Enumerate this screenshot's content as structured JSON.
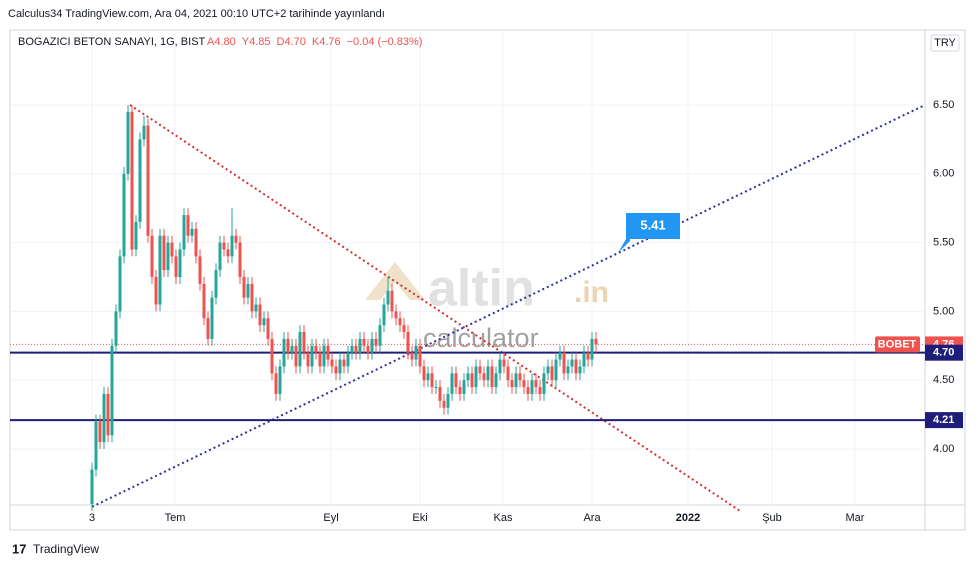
{
  "header": {
    "published": "Calculus34 TradingView.com, Ara 04, 2021 00:10 UTC+2 tarihinde yayınlandı",
    "brand": "TradingView"
  },
  "chart_data": {
    "type": "candlestick",
    "title": "BOGAZICI BETON SANAYI, 1G, BIST",
    "ohlc_legend": [
      "A4.80",
      "Y4.85",
      "D4.70",
      "K4.76",
      "−0.04 (−0.83%)"
    ],
    "currency": "TRY",
    "up_color": "#26a69a",
    "down_color": "#ef5350",
    "xlim": [
      -20.5,
      208.25
    ],
    "xticks": [
      {
        "value": 0,
        "label": "3"
      },
      {
        "value": 20.75,
        "label": "Tem"
      },
      {
        "value": 59.75,
        "label": "Eyl"
      },
      {
        "value": 82,
        "label": "Eki"
      },
      {
        "value": 102.75,
        "label": "Kas"
      },
      {
        "value": 125,
        "label": "Ara"
      },
      {
        "value": 149,
        "label": "2022"
      },
      {
        "value": 170,
        "label": "Şub"
      },
      {
        "value": 190.75,
        "label": "Mar"
      }
    ],
    "ylim": [
      3.593,
      7.045
    ],
    "yticks": [
      {
        "value": 4,
        "label": "4.00"
      },
      {
        "value": 4.5,
        "label": "4.50"
      },
      {
        "value": 5,
        "label": "5.00"
      },
      {
        "value": 5.5,
        "label": "5.50"
      },
      {
        "value": 6,
        "label": "6.00"
      },
      {
        "value": 6.5,
        "label": "6.50"
      }
    ],
    "grid": true,
    "open": [
      3.6,
      3.85,
      4.2,
      4.05,
      4.4,
      4.1,
      4.75,
      5.0,
      5.4,
      6.0,
      6.45,
      5.45,
      5.65,
      6.25,
      6.35,
      5.55,
      5.25,
      5.05,
      5.55,
      5.3,
      5.5,
      5.4,
      5.25,
      5.45,
      5.7,
      5.55,
      5.6,
      5.4,
      5.2,
      4.95,
      4.8,
      5.1,
      5.3,
      5.5,
      5.45,
      5.4,
      5.55,
      5.5,
      5.25,
      5.1,
      5.2,
      5.0,
      5.05,
      4.9,
      4.95,
      4.8,
      4.55,
      4.4,
      4.6,
      4.8,
      4.7,
      4.75,
      4.6,
      4.85,
      4.7,
      4.6,
      4.75,
      4.7,
      4.6,
      4.75,
      4.65,
      4.6,
      4.55,
      4.65,
      4.6,
      4.7,
      4.75,
      4.7,
      4.8,
      4.75,
      4.7,
      4.8,
      4.75,
      4.9,
      5.05,
      5.15,
      5.0,
      4.95,
      4.9,
      4.85,
      4.7,
      4.65,
      4.75,
      4.6,
      4.5,
      4.55,
      4.45,
      4.45,
      4.35,
      4.3,
      4.4,
      4.55,
      4.45,
      4.4,
      4.5,
      4.55,
      4.45,
      4.6,
      4.55,
      4.5,
      4.6,
      4.45,
      4.55,
      4.65,
      4.6,
      4.5,
      4.45,
      4.55,
      4.5,
      4.45,
      4.4,
      4.5,
      4.45,
      4.4,
      4.55,
      4.6,
      4.5,
      4.65,
      4.7,
      4.55,
      4.6,
      4.65,
      4.55,
      4.6,
      4.7,
      4.65,
      4.8
    ],
    "high": [
      3.9,
      4.25,
      4.25,
      4.45,
      4.45,
      4.8,
      5.05,
      5.45,
      6.05,
      6.5,
      6.5,
      5.7,
      6.3,
      6.42,
      6.4,
      5.6,
      5.3,
      5.6,
      5.6,
      5.55,
      5.55,
      5.45,
      5.5,
      5.75,
      5.75,
      5.65,
      5.65,
      5.45,
      5.25,
      5.0,
      5.15,
      5.35,
      5.55,
      5.55,
      5.5,
      5.75,
      5.6,
      5.55,
      5.3,
      5.25,
      5.25,
      5.1,
      5.1,
      5.0,
      5.0,
      4.85,
      4.6,
      4.65,
      4.85,
      4.85,
      4.8,
      4.8,
      4.9,
      4.9,
      4.75,
      4.8,
      4.8,
      4.75,
      4.8,
      4.8,
      4.7,
      4.65,
      4.7,
      4.7,
      4.75,
      4.8,
      4.8,
      4.85,
      4.85,
      4.8,
      4.85,
      4.85,
      4.95,
      5.1,
      5.25,
      5.2,
      5.05,
      5.0,
      4.95,
      4.9,
      4.75,
      4.8,
      4.8,
      4.65,
      4.6,
      4.6,
      4.5,
      4.5,
      4.4,
      4.45,
      4.6,
      4.6,
      4.5,
      4.55,
      4.6,
      4.6,
      4.65,
      4.65,
      4.6,
      4.65,
      4.65,
      4.6,
      4.7,
      4.7,
      4.65,
      4.55,
      4.6,
      4.6,
      4.55,
      4.5,
      4.55,
      4.55,
      4.5,
      4.6,
      4.65,
      4.65,
      4.7,
      4.75,
      4.75,
      4.65,
      4.7,
      4.7,
      4.65,
      4.75,
      4.75,
      4.85,
      4.85
    ],
    "low": [
      3.55,
      3.8,
      4.0,
      4.0,
      4.05,
      4.05,
      4.7,
      4.95,
      5.35,
      5.95,
      5.4,
      5.4,
      5.6,
      6.2,
      5.5,
      5.2,
      5.0,
      5.0,
      5.25,
      5.25,
      5.35,
      5.2,
      5.2,
      5.4,
      5.5,
      5.5,
      5.35,
      5.15,
      4.9,
      4.75,
      4.75,
      5.05,
      5.25,
      5.4,
      5.35,
      5.35,
      5.45,
      5.2,
      5.05,
      5.05,
      4.95,
      4.95,
      4.85,
      4.85,
      4.75,
      4.5,
      4.35,
      4.35,
      4.55,
      4.65,
      4.65,
      4.55,
      4.55,
      4.65,
      4.55,
      4.55,
      4.65,
      4.55,
      4.55,
      4.6,
      4.55,
      4.5,
      4.5,
      4.55,
      4.55,
      4.65,
      4.65,
      4.65,
      4.7,
      4.65,
      4.65,
      4.7,
      4.7,
      4.85,
      5.0,
      4.95,
      4.9,
      4.85,
      4.8,
      4.65,
      4.6,
      4.6,
      4.55,
      4.45,
      4.45,
      4.4,
      4.4,
      4.3,
      4.25,
      4.25,
      4.35,
      4.4,
      4.35,
      4.35,
      4.45,
      4.4,
      4.4,
      4.5,
      4.45,
      4.45,
      4.4,
      4.4,
      4.5,
      4.55,
      4.45,
      4.4,
      4.4,
      4.45,
      4.4,
      4.35,
      4.35,
      4.4,
      4.35,
      4.35,
      4.5,
      4.45,
      4.45,
      4.6,
      4.5,
      4.5,
      4.55,
      4.5,
      4.5,
      4.55,
      4.6,
      4.6,
      4.7
    ],
    "close": [
      3.85,
      4.2,
      4.05,
      4.4,
      4.1,
      4.75,
      5.0,
      5.4,
      6.0,
      6.45,
      5.45,
      5.65,
      6.25,
      6.35,
      5.55,
      5.25,
      5.05,
      5.55,
      5.3,
      5.5,
      5.4,
      5.25,
      5.45,
      5.7,
      5.55,
      5.6,
      5.4,
      5.2,
      4.95,
      4.8,
      5.1,
      5.3,
      5.5,
      5.45,
      5.4,
      5.55,
      5.5,
      5.25,
      5.1,
      5.2,
      5.0,
      5.05,
      4.9,
      4.95,
      4.8,
      4.55,
      4.4,
      4.6,
      4.8,
      4.7,
      4.75,
      4.6,
      4.85,
      4.7,
      4.6,
      4.75,
      4.7,
      4.6,
      4.75,
      4.65,
      4.6,
      4.55,
      4.65,
      4.6,
      4.7,
      4.75,
      4.7,
      4.8,
      4.75,
      4.7,
      4.8,
      4.75,
      4.9,
      5.05,
      5.15,
      5.0,
      4.95,
      4.9,
      4.85,
      4.7,
      4.65,
      4.75,
      4.6,
      4.5,
      4.55,
      4.45,
      4.45,
      4.35,
      4.3,
      4.4,
      4.55,
      4.45,
      4.4,
      4.5,
      4.55,
      4.45,
      4.6,
      4.55,
      4.5,
      4.6,
      4.45,
      4.55,
      4.65,
      4.6,
      4.5,
      4.45,
      4.55,
      4.5,
      4.45,
      4.4,
      4.5,
      4.45,
      4.4,
      4.55,
      4.6,
      4.5,
      4.65,
      4.7,
      4.55,
      4.6,
      4.65,
      4.55,
      4.6,
      4.7,
      4.65,
      4.8,
      4.76
    ],
    "price_line": {
      "name": "BOBET",
      "value": 4.76,
      "value_label": "4.76",
      "color": "#ef5350"
    },
    "hlines": [
      {
        "value": 4.7,
        "value_label": "4.70",
        "color": "#1e1e7a"
      },
      {
        "value": 4.21,
        "value_label": "4.21",
        "color": "#1e1e7a"
      }
    ],
    "trendlines": [
      {
        "x": [
          9.5,
          162
        ],
        "y": [
          6.5,
          3.55
        ],
        "color": "#d0312d"
      },
      {
        "x": [
          0,
          208.25
        ],
        "y": [
          3.58,
          6.5
        ],
        "color": "#3030a0"
      }
    ],
    "callout": {
      "x": 132,
      "y": 5.41,
      "label": "5.41",
      "color": "#2196f3"
    },
    "watermark": {
      "brand": "altin",
      "suffix": ".in",
      "tagline": "calculator"
    }
  }
}
